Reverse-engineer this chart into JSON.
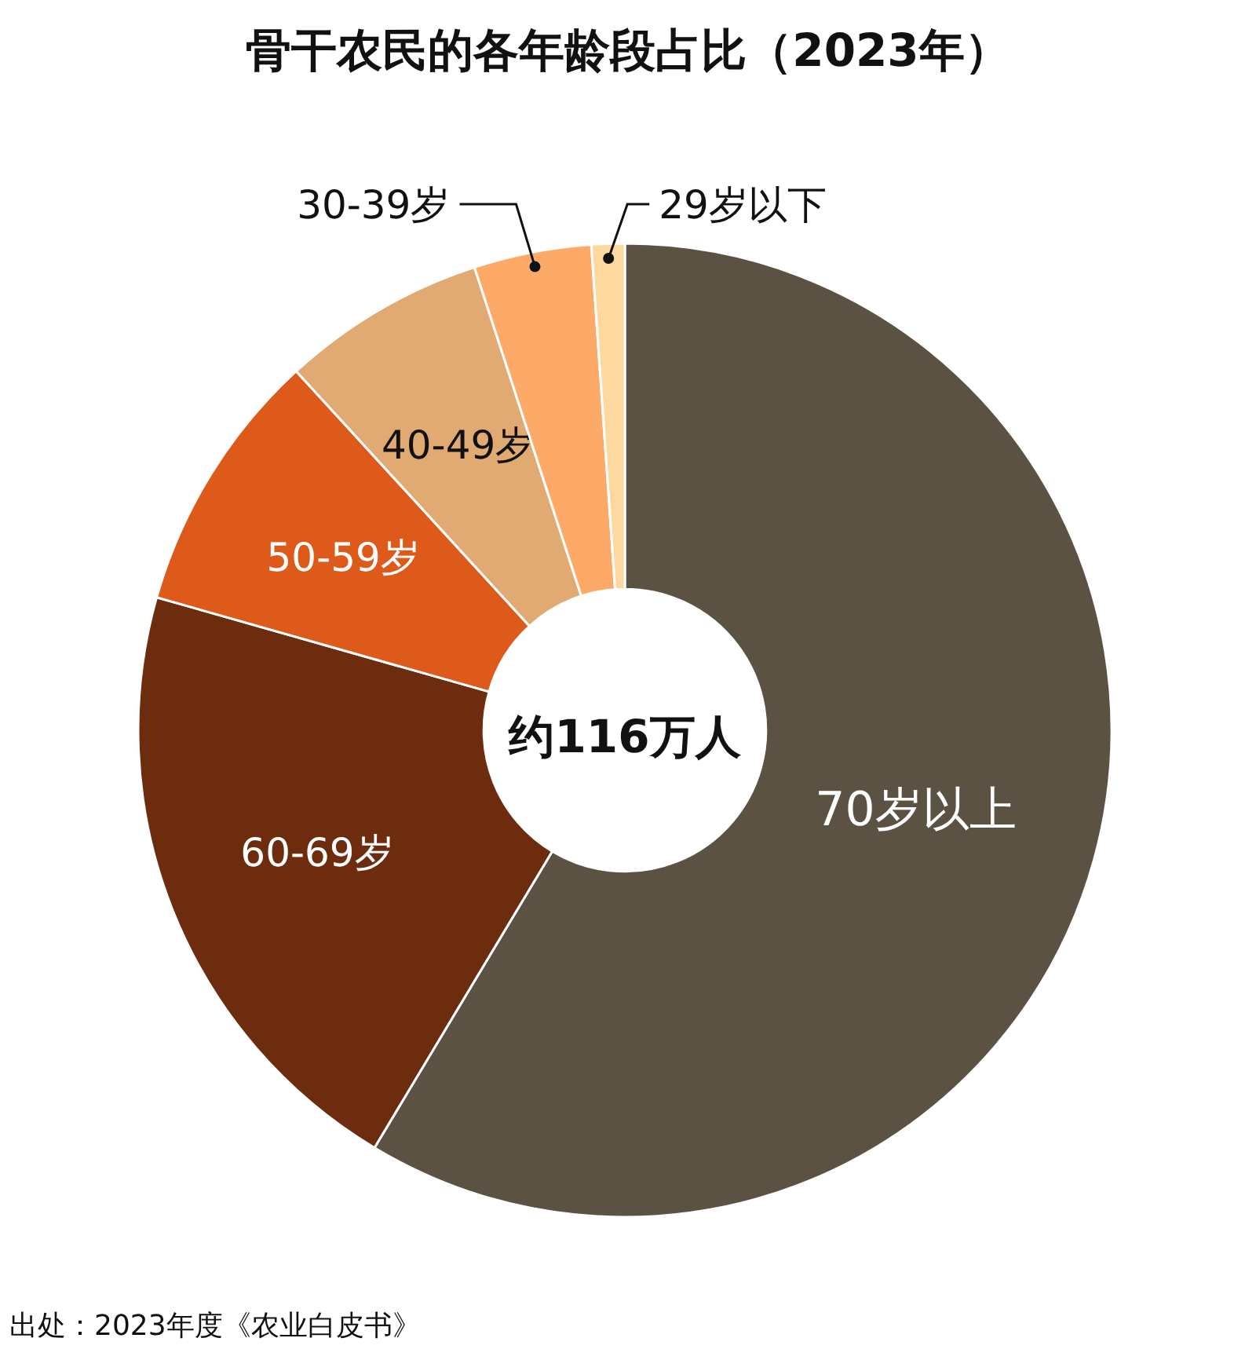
{
  "chart_data": {
    "type": "donut",
    "title": "骨干农民的各年龄段占比（2023年）",
    "categories": [
      "70岁以上",
      "60-69岁",
      "50-59岁",
      "40-49岁",
      "30-39岁",
      "29岁以下"
    ],
    "values": [
      58.6,
      20.8,
      8.8,
      6.8,
      3.9,
      1.1
    ],
    "colors": [
      "#5b5244",
      "#6e2c0f",
      "#dd5a1a",
      "#e0aa72",
      "#fdaa68",
      "#fdd9a0"
    ],
    "annotations": [
      "约116万人",
      "出处：2023年度《农业白皮书》"
    ]
  }
}
